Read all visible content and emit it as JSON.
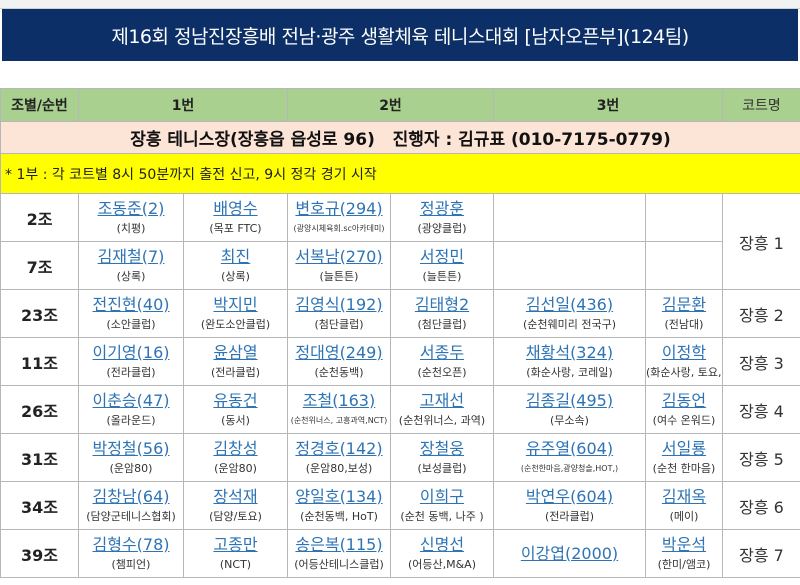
{
  "title": "제16회 정남진장흥배 전남·광주 생활체육 테니스대회 [남자오픈부](124팀)",
  "header": {
    "group": "조별/순번",
    "p1": "1번",
    "p2": "2번",
    "p3": "3번",
    "court": "코트명"
  },
  "venue": "장흥 테니스장(장흥읍 읍성로 96)   진행자 : 김규표 (010-7175-0779)",
  "notice": "* 1부 : 각 코트별 8시 50분까지 출전 신고, 9시 정각 경기 시작",
  "colors": {
    "title_bg": "#0b2f66",
    "header_bg": "#a9d08e",
    "venue_bg": "#fce4d6",
    "notice_bg": "#ffff00",
    "name_link": "#2e74b5"
  },
  "groups": [
    {
      "group": "2조",
      "players": [
        {
          "name": "조동준(2)",
          "club": "(치평)"
        },
        {
          "name": "배영수",
          "club": "(목포 FTC)"
        },
        {
          "name": "변호규(294)",
          "club": "(광양시체육회.sc아카데미)"
        },
        {
          "name": "정광훈",
          "club": "(광양클럽)"
        }
      ],
      "court": "장흥 1"
    },
    {
      "group": "7조",
      "players": [
        {
          "name": "김재철(7)",
          "club": "(상록)"
        },
        {
          "name": "최진",
          "club": "(상록)"
        },
        {
          "name": "서복남(270)",
          "club": "(늘튼튼)"
        },
        {
          "name": "서정민",
          "club": "(늘튼튼)"
        }
      ]
    },
    {
      "group": "23조",
      "players": [
        {
          "name": "전진현(40)",
          "club": "(소안클럽)"
        },
        {
          "name": "박지민",
          "club": "(완도소안클럽)"
        },
        {
          "name": "김영식(192)",
          "club": "(첨단클럽)"
        },
        {
          "name": "김태형2",
          "club": "(첨단클럽)"
        },
        {
          "name": "김선일(436)",
          "club": "(순천웨미리 전국구)"
        },
        {
          "name": "김문환",
          "club": "(전남대)"
        }
      ],
      "court": "장흥 2"
    },
    {
      "group": "11조",
      "players": [
        {
          "name": "이기영(16)",
          "club": "(전라클럽)"
        },
        {
          "name": "윤삼열",
          "club": "(전라클럽)"
        },
        {
          "name": "정대영(249)",
          "club": "(순천동백)"
        },
        {
          "name": "서종두",
          "club": "(순천오픈)"
        },
        {
          "name": "채황석(324)",
          "club": "(화순사랑, 코레일)"
        },
        {
          "name": "이정학",
          "club": "(화순사랑, 토요, )"
        }
      ],
      "court": "장흥 3"
    },
    {
      "group": "26조",
      "players": [
        {
          "name": "이춘승(47)",
          "club": "(올라운드)"
        },
        {
          "name": "유동건",
          "club": "(동서)"
        },
        {
          "name": "조철(163)",
          "club": "(순천위너스, 고흥과역,NCT)"
        },
        {
          "name": "고재선",
          "club": "(순천위너스, 과역)"
        },
        {
          "name": "김종길(495)",
          "club": "(무소속)"
        },
        {
          "name": "김동언",
          "club": "(여수 온워드)"
        }
      ],
      "court": "장흥 4"
    },
    {
      "group": "31조",
      "players": [
        {
          "name": "박정철(56)",
          "club": "(운암80)"
        },
        {
          "name": "김창성",
          "club": "(운암80)"
        },
        {
          "name": "정경호(142)",
          "club": "(운암80,보성)"
        },
        {
          "name": "장철웅",
          "club": "(보성클럽)"
        },
        {
          "name": "유주열(604)",
          "club": "(순천한마음,광양청솔,HOT,)"
        },
        {
          "name": "서일룡",
          "club": "(순천 한마음)"
        }
      ],
      "court": "장흥 5"
    },
    {
      "group": "34조",
      "players": [
        {
          "name": "김창남(64)",
          "club": "(담양군테니스협회)"
        },
        {
          "name": "장석재",
          "club": "(담양/토요)"
        },
        {
          "name": "양일호(134)",
          "club": "(순천동백, HoT)"
        },
        {
          "name": "이희구",
          "club": "(순천 동백, 나주 )"
        },
        {
          "name": "박연우(604)",
          "club": "(전라클럽)"
        },
        {
          "name": "김재옥",
          "club": "(메이)"
        }
      ],
      "court": "장흥 6"
    },
    {
      "group": "39조",
      "players": [
        {
          "name": "김형수(78)",
          "club": "(챔피언)"
        },
        {
          "name": "고종만",
          "club": "(NCT)"
        },
        {
          "name": "송은복(115)",
          "club": "(어등산테니스클럽)"
        },
        {
          "name": "신명선",
          "club": "(어등산,M&A)"
        },
        {
          "name": "이강엽(2000)",
          "club": ""
        },
        {
          "name": "박운석",
          "club": "(한미/앰코)"
        }
      ],
      "court": "장흥 7"
    }
  ]
}
